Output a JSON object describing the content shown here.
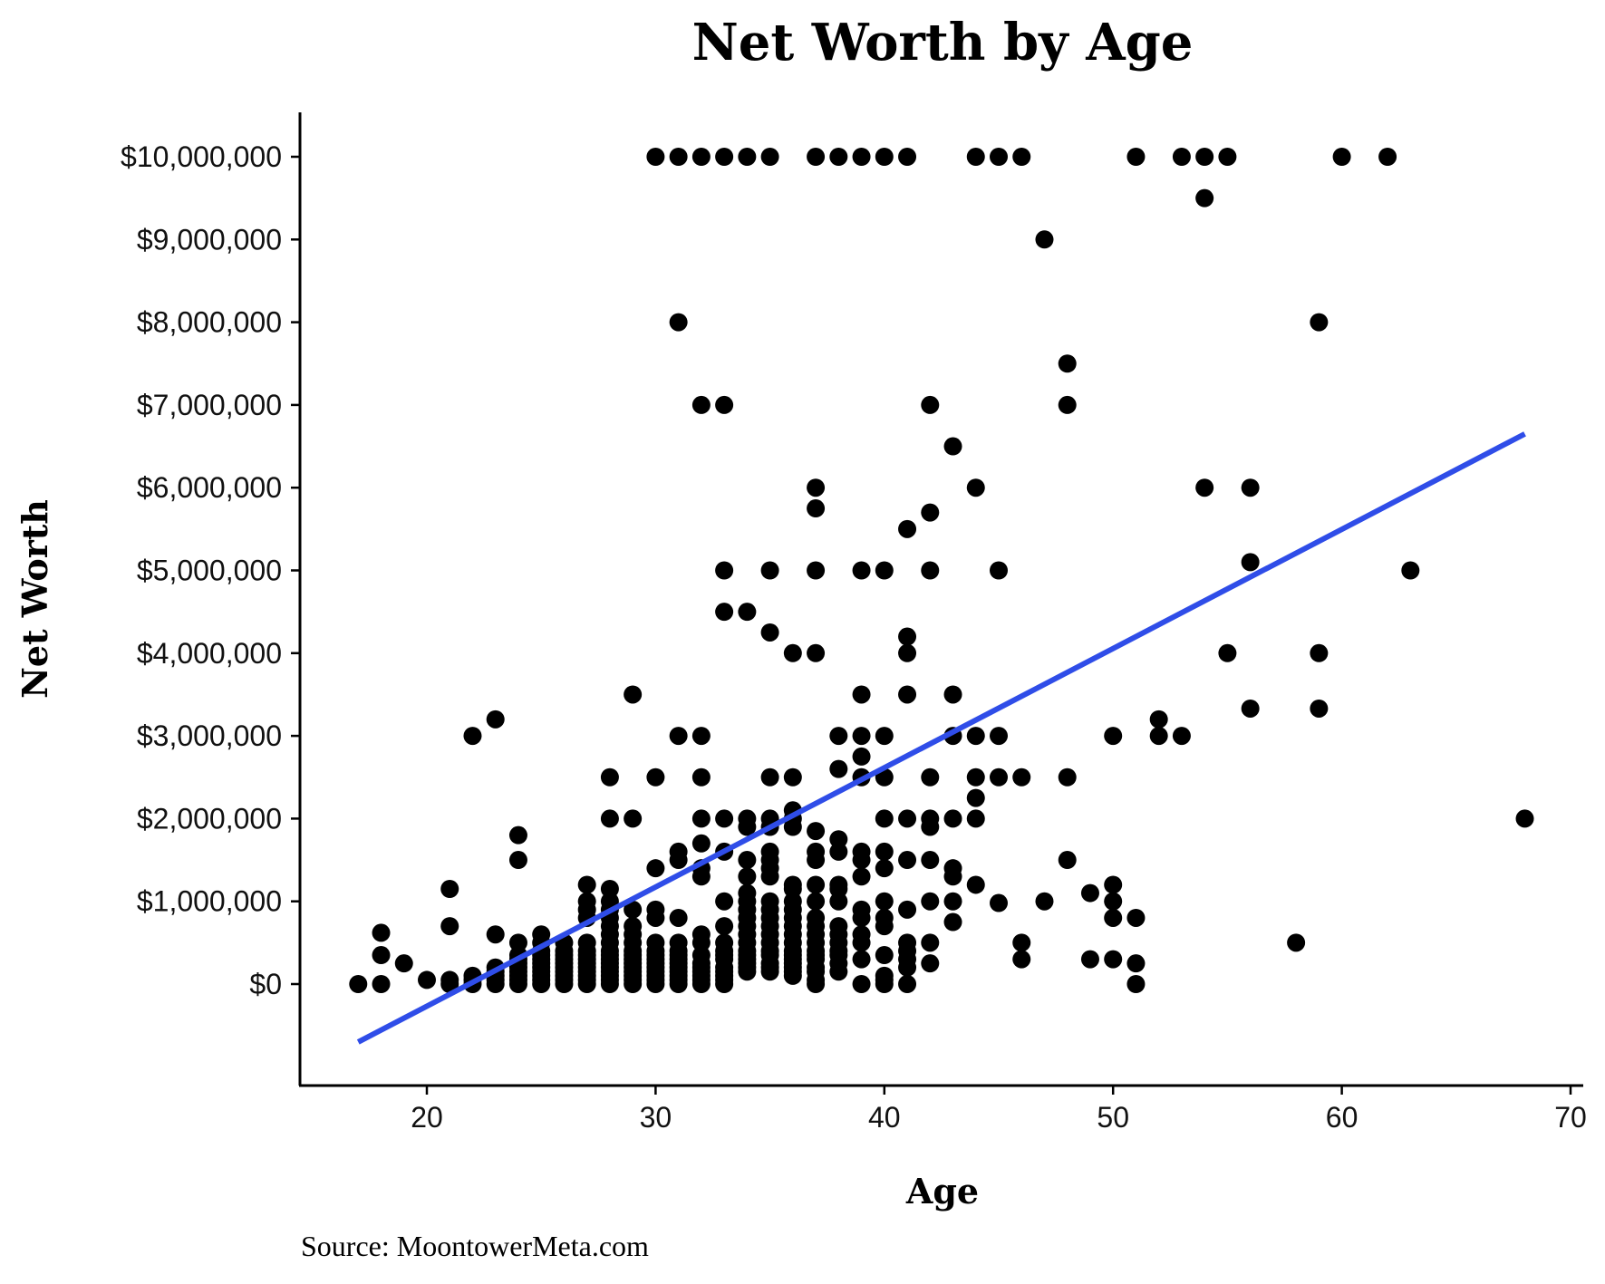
{
  "chart_data": {
    "type": "scatter",
    "title": "Net Worth by Age",
    "xlabel": "Age",
    "ylabel": "Net Worth",
    "source": "Source: MoontowerMeta.com",
    "xlim": [
      14.5,
      70.5
    ],
    "ylim": [
      -1250000,
      10500000
    ],
    "x_ticks": [
      20,
      30,
      40,
      50,
      60,
      70
    ],
    "x_tick_labels": [
      "20",
      "30",
      "40",
      "50",
      "60",
      "70"
    ],
    "y_ticks": [
      0,
      1000000,
      2000000,
      3000000,
      4000000,
      5000000,
      6000000,
      7000000,
      8000000,
      9000000,
      10000000
    ],
    "y_tick_labels": [
      "$0",
      "$1,000,000",
      "$2,000,000",
      "$3,000,000",
      "$4,000,000",
      "$5,000,000",
      "$6,000,000",
      "$7,000,000",
      "$8,000,000",
      "$9,000,000",
      "$10,000,000"
    ],
    "grid": false,
    "legend": "none",
    "point_color": "#000000",
    "trend_color": "#2f4de8",
    "trendline": {
      "type": "linear",
      "x": [
        17,
        68
      ],
      "y": [
        -700000,
        6650000
      ]
    },
    "points": [
      [
        30,
        10000000
      ],
      [
        31,
        10000000
      ],
      [
        32,
        10000000
      ],
      [
        33,
        10000000
      ],
      [
        34,
        10000000
      ],
      [
        35,
        10000000
      ],
      [
        37,
        10000000
      ],
      [
        38,
        10000000
      ],
      [
        39,
        10000000
      ],
      [
        40,
        10000000
      ],
      [
        41,
        10000000
      ],
      [
        44,
        10000000
      ],
      [
        45,
        10000000
      ],
      [
        46,
        10000000
      ],
      [
        51,
        10000000
      ],
      [
        53,
        10000000
      ],
      [
        54,
        10000000
      ],
      [
        55,
        10000000
      ],
      [
        60,
        10000000
      ],
      [
        62,
        10000000
      ],
      [
        54,
        9500000
      ],
      [
        47,
        9000000
      ],
      [
        31,
        8000000
      ],
      [
        59,
        8000000
      ],
      [
        48,
        7500000
      ],
      [
        32,
        7000000
      ],
      [
        33,
        7000000
      ],
      [
        42,
        7000000
      ],
      [
        48,
        7000000
      ],
      [
        43,
        6500000
      ],
      [
        37,
        6000000
      ],
      [
        44,
        6000000
      ],
      [
        54,
        6000000
      ],
      [
        56,
        6000000
      ],
      [
        37,
        5750000
      ],
      [
        42,
        5700000
      ],
      [
        41,
        5500000
      ],
      [
        33,
        5000000
      ],
      [
        35,
        5000000
      ],
      [
        37,
        5000000
      ],
      [
        39,
        5000000
      ],
      [
        40,
        5000000
      ],
      [
        42,
        5000000
      ],
      [
        45,
        5000000
      ],
      [
        56,
        5100000
      ],
      [
        63,
        5000000
      ],
      [
        33,
        4500000
      ],
      [
        34,
        4500000
      ],
      [
        35,
        4250000
      ],
      [
        41,
        4200000
      ],
      [
        36,
        4000000
      ],
      [
        37,
        4000000
      ],
      [
        41,
        4000000
      ],
      [
        55,
        4000000
      ],
      [
        59,
        4000000
      ],
      [
        29,
        3500000
      ],
      [
        39,
        3500000
      ],
      [
        41,
        3500000
      ],
      [
        43,
        3500000
      ],
      [
        56,
        3330000
      ],
      [
        59,
        3330000
      ],
      [
        23,
        3200000
      ],
      [
        52,
        3200000
      ],
      [
        22,
        3000000
      ],
      [
        31,
        3000000
      ],
      [
        32,
        3000000
      ],
      [
        38,
        3000000
      ],
      [
        39,
        3000000
      ],
      [
        40,
        3000000
      ],
      [
        43,
        3000000
      ],
      [
        44,
        3000000
      ],
      [
        45,
        3000000
      ],
      [
        50,
        3000000
      ],
      [
        52,
        3000000
      ],
      [
        53,
        3000000
      ],
      [
        39,
        2750000
      ],
      [
        38,
        2600000
      ],
      [
        28,
        2500000
      ],
      [
        30,
        2500000
      ],
      [
        32,
        2500000
      ],
      [
        35,
        2500000
      ],
      [
        36,
        2500000
      ],
      [
        39,
        2500000
      ],
      [
        40,
        2500000
      ],
      [
        42,
        2500000
      ],
      [
        44,
        2500000
      ],
      [
        45,
        2500000
      ],
      [
        46,
        2500000
      ],
      [
        48,
        2500000
      ],
      [
        44,
        2250000
      ],
      [
        36,
        2100000
      ],
      [
        28,
        2000000
      ],
      [
        29,
        2000000
      ],
      [
        32,
        2000000
      ],
      [
        33,
        2000000
      ],
      [
        34,
        2000000
      ],
      [
        35,
        2000000
      ],
      [
        36,
        2000000
      ],
      [
        40,
        2000000
      ],
      [
        41,
        2000000
      ],
      [
        42,
        2000000
      ],
      [
        43,
        2000000
      ],
      [
        44,
        2000000
      ],
      [
        68,
        2000000
      ],
      [
        34,
        1900000
      ],
      [
        35,
        1900000
      ],
      [
        36,
        1900000
      ],
      [
        42,
        1900000
      ],
      [
        37,
        1850000
      ],
      [
        24,
        1800000
      ],
      [
        38,
        1750000
      ],
      [
        32,
        1700000
      ],
      [
        31,
        1600000
      ],
      [
        33,
        1600000
      ],
      [
        35,
        1600000
      ],
      [
        37,
        1600000
      ],
      [
        38,
        1600000
      ],
      [
        39,
        1600000
      ],
      [
        40,
        1600000
      ],
      [
        24,
        1500000
      ],
      [
        31,
        1500000
      ],
      [
        34,
        1500000
      ],
      [
        35,
        1500000
      ],
      [
        37,
        1500000
      ],
      [
        39,
        1500000
      ],
      [
        41,
        1500000
      ],
      [
        42,
        1500000
      ],
      [
        48,
        1500000
      ],
      [
        30,
        1400000
      ],
      [
        32,
        1400000
      ],
      [
        35,
        1400000
      ],
      [
        40,
        1400000
      ],
      [
        43,
        1400000
      ],
      [
        32,
        1300000
      ],
      [
        34,
        1300000
      ],
      [
        35,
        1300000
      ],
      [
        39,
        1300000
      ],
      [
        43,
        1300000
      ],
      [
        27,
        1200000
      ],
      [
        36,
        1200000
      ],
      [
        37,
        1200000
      ],
      [
        38,
        1200000
      ],
      [
        44,
        1200000
      ],
      [
        50,
        1200000
      ],
      [
        21,
        1150000
      ],
      [
        28,
        1150000
      ],
      [
        36,
        1150000
      ],
      [
        38,
        1150000
      ],
      [
        34,
        1100000
      ],
      [
        49,
        1100000
      ],
      [
        27,
        1000000
      ],
      [
        28,
        1000000
      ],
      [
        33,
        1000000
      ],
      [
        34,
        1000000
      ],
      [
        35,
        1000000
      ],
      [
        36,
        1000000
      ],
      [
        37,
        1000000
      ],
      [
        38,
        1000000
      ],
      [
        40,
        1000000
      ],
      [
        42,
        1000000
      ],
      [
        43,
        1000000
      ],
      [
        47,
        1000000
      ],
      [
        50,
        1000000
      ],
      [
        27,
        900000
      ],
      [
        28,
        900000
      ],
      [
        29,
        900000
      ],
      [
        30,
        900000
      ],
      [
        34,
        900000
      ],
      [
        35,
        900000
      ],
      [
        36,
        900000
      ],
      [
        39,
        900000
      ],
      [
        41,
        900000
      ],
      [
        45,
        980000
      ],
      [
        27,
        800000
      ],
      [
        28,
        800000
      ],
      [
        30,
        800000
      ],
      [
        31,
        800000
      ],
      [
        34,
        800000
      ],
      [
        35,
        800000
      ],
      [
        36,
        800000
      ],
      [
        37,
        800000
      ],
      [
        39,
        800000
      ],
      [
        40,
        800000
      ],
      [
        43,
        750000
      ],
      [
        50,
        800000
      ],
      [
        51,
        800000
      ],
      [
        21,
        700000
      ],
      [
        28,
        700000
      ],
      [
        29,
        700000
      ],
      [
        33,
        700000
      ],
      [
        34,
        700000
      ],
      [
        35,
        700000
      ],
      [
        36,
        700000
      ],
      [
        37,
        700000
      ],
      [
        38,
        700000
      ],
      [
        40,
        700000
      ],
      [
        18,
        620000
      ],
      [
        23,
        600000
      ],
      [
        25,
        600000
      ],
      [
        28,
        600000
      ],
      [
        29,
        600000
      ],
      [
        32,
        600000
      ],
      [
        34,
        600000
      ],
      [
        35,
        600000
      ],
      [
        36,
        600000
      ],
      [
        37,
        600000
      ],
      [
        38,
        600000
      ],
      [
        39,
        600000
      ],
      [
        24,
        500000
      ],
      [
        25,
        500000
      ],
      [
        26,
        500000
      ],
      [
        27,
        500000
      ],
      [
        28,
        500000
      ],
      [
        29,
        500000
      ],
      [
        30,
        500000
      ],
      [
        31,
        500000
      ],
      [
        32,
        500000
      ],
      [
        33,
        500000
      ],
      [
        34,
        500000
      ],
      [
        35,
        500000
      ],
      [
        36,
        500000
      ],
      [
        37,
        500000
      ],
      [
        38,
        500000
      ],
      [
        39,
        500000
      ],
      [
        41,
        500000
      ],
      [
        42,
        500000
      ],
      [
        46,
        500000
      ],
      [
        58,
        500000
      ],
      [
        25,
        400000
      ],
      [
        26,
        400000
      ],
      [
        27,
        400000
      ],
      [
        28,
        400000
      ],
      [
        29,
        400000
      ],
      [
        30,
        400000
      ],
      [
        31,
        400000
      ],
      [
        33,
        400000
      ],
      [
        34,
        400000
      ],
      [
        35,
        400000
      ],
      [
        36,
        400000
      ],
      [
        37,
        400000
      ],
      [
        38,
        400000
      ],
      [
        41,
        400000
      ],
      [
        18,
        350000
      ],
      [
        24,
        350000
      ],
      [
        25,
        350000
      ],
      [
        26,
        350000
      ],
      [
        27,
        350000
      ],
      [
        28,
        350000
      ],
      [
        29,
        350000
      ],
      [
        30,
        350000
      ],
      [
        31,
        350000
      ],
      [
        32,
        350000
      ],
      [
        33,
        350000
      ],
      [
        34,
        350000
      ],
      [
        35,
        350000
      ],
      [
        36,
        350000
      ],
      [
        37,
        350000
      ],
      [
        38,
        350000
      ],
      [
        40,
        350000
      ],
      [
        24,
        300000
      ],
      [
        25,
        300000
      ],
      [
        26,
        300000
      ],
      [
        27,
        300000
      ],
      [
        28,
        300000
      ],
      [
        29,
        300000
      ],
      [
        30,
        300000
      ],
      [
        31,
        300000
      ],
      [
        33,
        300000
      ],
      [
        34,
        300000
      ],
      [
        36,
        300000
      ],
      [
        37,
        300000
      ],
      [
        39,
        300000
      ],
      [
        41,
        300000
      ],
      [
        46,
        300000
      ],
      [
        49,
        300000
      ],
      [
        50,
        300000
      ],
      [
        19,
        250000
      ],
      [
        24,
        250000
      ],
      [
        25,
        250000
      ],
      [
        26,
        250000
      ],
      [
        27,
        250000
      ],
      [
        28,
        250000
      ],
      [
        29,
        250000
      ],
      [
        30,
        250000
      ],
      [
        31,
        250000
      ],
      [
        32,
        250000
      ],
      [
        34,
        250000
      ],
      [
        35,
        250000
      ],
      [
        36,
        250000
      ],
      [
        38,
        250000
      ],
      [
        42,
        250000
      ],
      [
        51,
        250000
      ],
      [
        23,
        200000
      ],
      [
        24,
        200000
      ],
      [
        25,
        200000
      ],
      [
        26,
        200000
      ],
      [
        27,
        200000
      ],
      [
        28,
        200000
      ],
      [
        29,
        200000
      ],
      [
        30,
        200000
      ],
      [
        31,
        200000
      ],
      [
        32,
        200000
      ],
      [
        33,
        200000
      ],
      [
        34,
        200000
      ],
      [
        35,
        200000
      ],
      [
        36,
        200000
      ],
      [
        37,
        200000
      ],
      [
        41,
        200000
      ],
      [
        23,
        150000
      ],
      [
        24,
        150000
      ],
      [
        25,
        150000
      ],
      [
        26,
        150000
      ],
      [
        27,
        150000
      ],
      [
        28,
        150000
      ],
      [
        29,
        150000
      ],
      [
        30,
        150000
      ],
      [
        31,
        150000
      ],
      [
        32,
        150000
      ],
      [
        33,
        150000
      ],
      [
        34,
        150000
      ],
      [
        35,
        150000
      ],
      [
        36,
        150000
      ],
      [
        37,
        150000
      ],
      [
        38,
        150000
      ],
      [
        22,
        100000
      ],
      [
        23,
        100000
      ],
      [
        24,
        100000
      ],
      [
        25,
        100000
      ],
      [
        26,
        100000
      ],
      [
        27,
        100000
      ],
      [
        28,
        100000
      ],
      [
        29,
        100000
      ],
      [
        30,
        100000
      ],
      [
        31,
        100000
      ],
      [
        32,
        100000
      ],
      [
        33,
        100000
      ],
      [
        36,
        100000
      ],
      [
        40,
        100000
      ],
      [
        20,
        50000
      ],
      [
        21,
        50000
      ],
      [
        22,
        50000
      ],
      [
        23,
        50000
      ],
      [
        24,
        50000
      ],
      [
        25,
        50000
      ],
      [
        26,
        50000
      ],
      [
        27,
        50000
      ],
      [
        28,
        50000
      ],
      [
        29,
        50000
      ],
      [
        30,
        50000
      ],
      [
        31,
        50000
      ],
      [
        32,
        50000
      ],
      [
        33,
        50000
      ],
      [
        37,
        50000
      ],
      [
        40,
        50000
      ],
      [
        17,
        0
      ],
      [
        18,
        0
      ],
      [
        21,
        0
      ],
      [
        22,
        0
      ],
      [
        23,
        0
      ],
      [
        24,
        0
      ],
      [
        25,
        0
      ],
      [
        26,
        0
      ],
      [
        27,
        0
      ],
      [
        28,
        0
      ],
      [
        29,
        0
      ],
      [
        30,
        0
      ],
      [
        31,
        0
      ],
      [
        32,
        0
      ],
      [
        33,
        0
      ],
      [
        37,
        0
      ],
      [
        39,
        0
      ],
      [
        40,
        0
      ],
      [
        41,
        0
      ],
      [
        51,
        0
      ]
    ]
  }
}
